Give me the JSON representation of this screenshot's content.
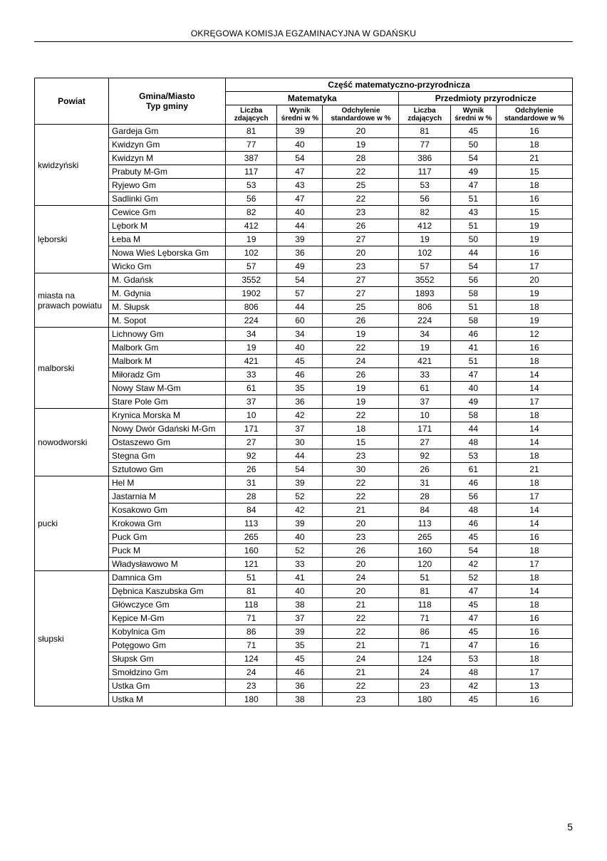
{
  "header": "OKRĘGOWA KOMISJA EGZAMINACYJNA W GDAŃSKU",
  "pageNumber": "5",
  "table": {
    "head": {
      "powiat": "Powiat",
      "gmina": "Gmina/Miasto\nTyp gminy",
      "section": "Część matematyczno-przyrodnicza",
      "sub1": "Matematyka",
      "sub2": "Przedmioty przyrodnicze",
      "liczba": "Liczba zdających",
      "wynik": "Wynik średni w %",
      "odch": "Odchylenie standardowe w %"
    },
    "groups": [
      {
        "powiat": "kwidzyński",
        "rows": [
          {
            "g": "Gardeja Gm",
            "m": [
              81,
              39,
              20
            ],
            "p": [
              81,
              45,
              16
            ]
          },
          {
            "g": "Kwidzyn Gm",
            "m": [
              77,
              40,
              19
            ],
            "p": [
              77,
              50,
              18
            ]
          },
          {
            "g": "Kwidzyn M",
            "m": [
              387,
              54,
              28
            ],
            "p": [
              386,
              54,
              21
            ]
          },
          {
            "g": "Prabuty M-Gm",
            "m": [
              117,
              47,
              22
            ],
            "p": [
              117,
              49,
              15
            ]
          },
          {
            "g": "Ryjewo Gm",
            "m": [
              53,
              43,
              25
            ],
            "p": [
              53,
              47,
              18
            ]
          },
          {
            "g": "Sadlinki Gm",
            "m": [
              56,
              47,
              22
            ],
            "p": [
              56,
              51,
              16
            ]
          }
        ]
      },
      {
        "powiat": "lęborski",
        "rows": [
          {
            "g": "Cewice Gm",
            "m": [
              82,
              40,
              23
            ],
            "p": [
              82,
              43,
              15
            ]
          },
          {
            "g": "Lębork M",
            "m": [
              412,
              44,
              26
            ],
            "p": [
              412,
              51,
              19
            ]
          },
          {
            "g": "Łeba M",
            "m": [
              19,
              39,
              27
            ],
            "p": [
              19,
              50,
              19
            ]
          },
          {
            "g": "Nowa Wieś Lęborska Gm",
            "m": [
              102,
              36,
              20
            ],
            "p": [
              102,
              44,
              16
            ]
          },
          {
            "g": "Wicko Gm",
            "m": [
              57,
              49,
              23
            ],
            "p": [
              57,
              54,
              17
            ]
          }
        ]
      },
      {
        "powiat": "miasta na prawach powiatu",
        "rows": [
          {
            "g": "M. Gdańsk",
            "m": [
              3552,
              54,
              27
            ],
            "p": [
              3552,
              56,
              20
            ]
          },
          {
            "g": "M. Gdynia",
            "m": [
              1902,
              57,
              27
            ],
            "p": [
              1893,
              58,
              19
            ]
          },
          {
            "g": "M. Słupsk",
            "m": [
              806,
              44,
              25
            ],
            "p": [
              806,
              51,
              18
            ]
          },
          {
            "g": "M. Sopot",
            "m": [
              224,
              60,
              26
            ],
            "p": [
              224,
              58,
              19
            ]
          }
        ]
      },
      {
        "powiat": "malborski",
        "rows": [
          {
            "g": "Lichnowy Gm",
            "m": [
              34,
              34,
              19
            ],
            "p": [
              34,
              46,
              12
            ]
          },
          {
            "g": "Malbork Gm",
            "m": [
              19,
              40,
              22
            ],
            "p": [
              19,
              41,
              16
            ]
          },
          {
            "g": "Malbork M",
            "m": [
              421,
              45,
              24
            ],
            "p": [
              421,
              51,
              18
            ]
          },
          {
            "g": "Miłoradz Gm",
            "m": [
              33,
              46,
              26
            ],
            "p": [
              33,
              47,
              14
            ]
          },
          {
            "g": "Nowy Staw M-Gm",
            "m": [
              61,
              35,
              19
            ],
            "p": [
              61,
              40,
              14
            ]
          },
          {
            "g": "Stare Pole Gm",
            "m": [
              37,
              36,
              19
            ],
            "p": [
              37,
              49,
              17
            ]
          }
        ]
      },
      {
        "powiat": "nowodworski",
        "rows": [
          {
            "g": "Krynica Morska M",
            "m": [
              10,
              42,
              22
            ],
            "p": [
              10,
              58,
              18
            ]
          },
          {
            "g": "Nowy Dwór Gdański M-Gm",
            "m": [
              171,
              37,
              18
            ],
            "p": [
              171,
              44,
              14
            ]
          },
          {
            "g": "Ostaszewo Gm",
            "m": [
              27,
              30,
              15
            ],
            "p": [
              27,
              48,
              14
            ]
          },
          {
            "g": "Stegna Gm",
            "m": [
              92,
              44,
              23
            ],
            "p": [
              92,
              53,
              18
            ]
          },
          {
            "g": "Sztutowo Gm",
            "m": [
              26,
              54,
              30
            ],
            "p": [
              26,
              61,
              21
            ]
          }
        ]
      },
      {
        "powiat": "pucki",
        "rows": [
          {
            "g": "Hel M",
            "m": [
              31,
              39,
              22
            ],
            "p": [
              31,
              46,
              18
            ]
          },
          {
            "g": "Jastarnia M",
            "m": [
              28,
              52,
              22
            ],
            "p": [
              28,
              56,
              17
            ]
          },
          {
            "g": "Kosakowo Gm",
            "m": [
              84,
              42,
              21
            ],
            "p": [
              84,
              48,
              14
            ]
          },
          {
            "g": "Krokowa Gm",
            "m": [
              113,
              39,
              20
            ],
            "p": [
              113,
              46,
              14
            ]
          },
          {
            "g": "Puck Gm",
            "m": [
              265,
              40,
              23
            ],
            "p": [
              265,
              45,
              16
            ]
          },
          {
            "g": "Puck M",
            "m": [
              160,
              52,
              26
            ],
            "p": [
              160,
              54,
              18
            ]
          },
          {
            "g": "Władysławowo M",
            "m": [
              121,
              33,
              20
            ],
            "p": [
              120,
              42,
              17
            ]
          }
        ]
      },
      {
        "powiat": "słupski",
        "rows": [
          {
            "g": "Damnica Gm",
            "m": [
              51,
              41,
              24
            ],
            "p": [
              51,
              52,
              18
            ]
          },
          {
            "g": "Dębnica Kaszubska Gm",
            "m": [
              81,
              40,
              20
            ],
            "p": [
              81,
              47,
              14
            ]
          },
          {
            "g": "Główczyce Gm",
            "m": [
              118,
              38,
              21
            ],
            "p": [
              118,
              45,
              18
            ]
          },
          {
            "g": "Kępice M-Gm",
            "m": [
              71,
              37,
              22
            ],
            "p": [
              71,
              47,
              16
            ]
          },
          {
            "g": "Kobylnica Gm",
            "m": [
              86,
              39,
              22
            ],
            "p": [
              86,
              45,
              16
            ]
          },
          {
            "g": "Potęgowo Gm",
            "m": [
              71,
              35,
              21
            ],
            "p": [
              71,
              47,
              16
            ]
          },
          {
            "g": "Słupsk Gm",
            "m": [
              124,
              45,
              24
            ],
            "p": [
              124,
              53,
              18
            ]
          },
          {
            "g": "Smołdzino Gm",
            "m": [
              24,
              46,
              21
            ],
            "p": [
              24,
              48,
              17
            ]
          },
          {
            "g": "Ustka Gm",
            "m": [
              23,
              36,
              22
            ],
            "p": [
              23,
              42,
              13
            ]
          },
          {
            "g": "Ustka M",
            "m": [
              180,
              38,
              23
            ],
            "p": [
              180,
              45,
              16
            ]
          }
        ]
      }
    ]
  }
}
